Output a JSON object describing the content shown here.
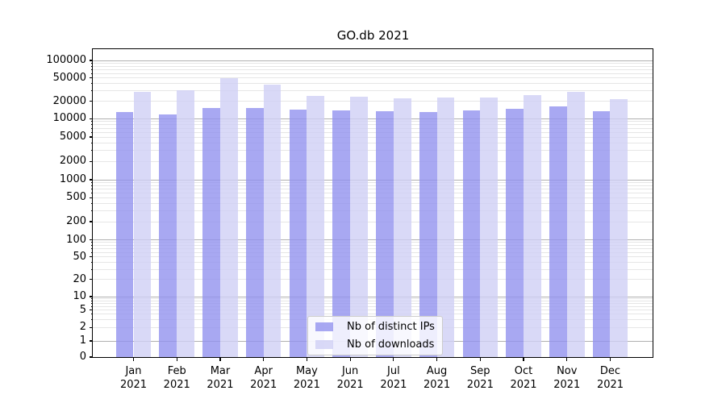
{
  "chart_data": {
    "type": "bar",
    "title": "GO.db 2021",
    "categories": [
      "Jan 2021",
      "Feb 2021",
      "Mar 2021",
      "Apr 2021",
      "May 2021",
      "Jun 2021",
      "Jul 2021",
      "Aug 2021",
      "Sep 2021",
      "Oct 2021",
      "Nov 2021",
      "Dec 2021"
    ],
    "x_tick_line1": [
      "Jan",
      "Feb",
      "Mar",
      "Apr",
      "May",
      "Jun",
      "Jul",
      "Aug",
      "Sep",
      "Oct",
      "Nov",
      "Dec"
    ],
    "x_tick_line2": "2021",
    "series": [
      {
        "name": "Nb of distinct IPs",
        "color": "#9292ef",
        "alpha": 0.8,
        "values": [
          12900,
          11700,
          15400,
          15400,
          14200,
          14100,
          13300,
          12900,
          14100,
          14800,
          16300,
          13600
        ]
      },
      {
        "name": "Nb of downloads",
        "color": "#d0d0f5",
        "alpha": 0.8,
        "values": [
          28500,
          31000,
          50000,
          38700,
          24500,
          23800,
          22500,
          23300,
          23300,
          25400,
          28800,
          21800
        ]
      }
    ],
    "y_axis": {
      "scale": "symlog",
      "tick_labels": [
        "0",
        "1",
        "2",
        "5",
        "10",
        "20",
        "50",
        "100",
        "200",
        "500",
        "1000",
        "2000",
        "5000",
        "10000",
        "20000",
        "50000",
        "100000"
      ],
      "top_value": 155000
    },
    "legend": {
      "entries": [
        "Nb of distinct IPs",
        "Nb of downloads"
      ],
      "location": "lower center"
    },
    "grid": {
      "major_color": "#b0b0b0",
      "minor_color": "#e6e6e6"
    },
    "frame_color": "#000000",
    "background": "#ffffff"
  }
}
